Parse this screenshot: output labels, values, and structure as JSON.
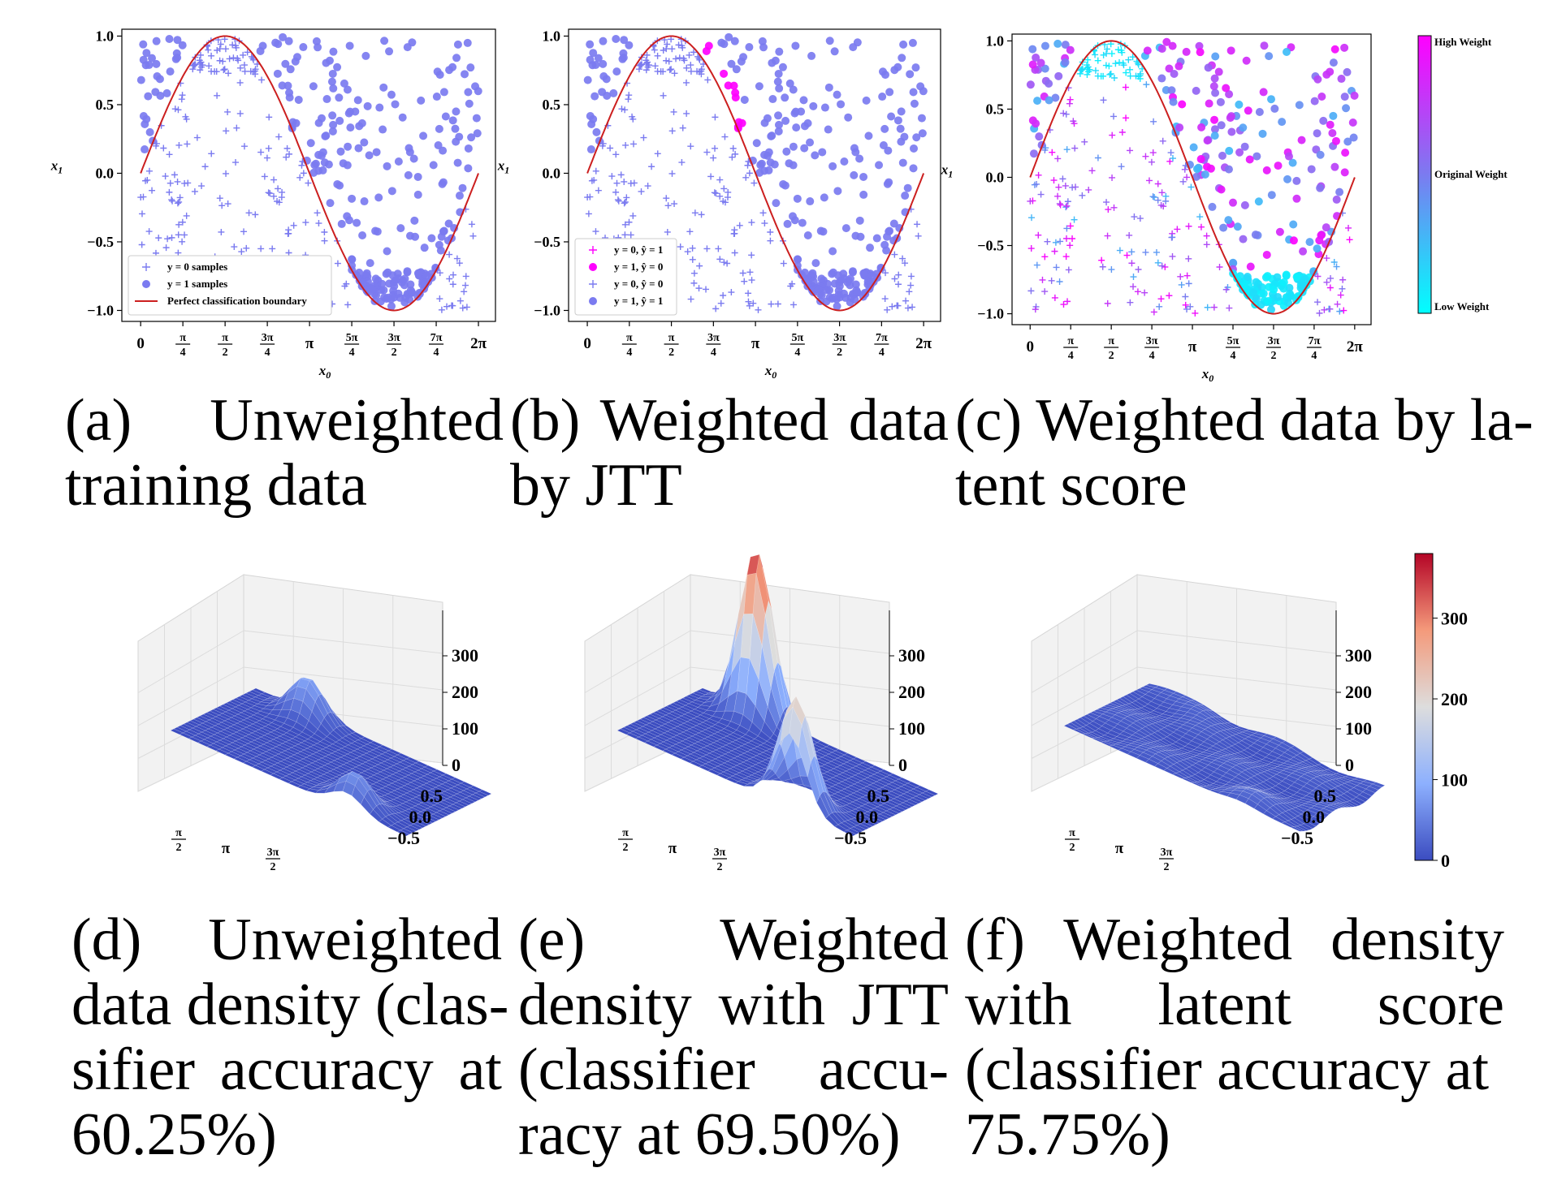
{
  "chart_data": [
    {
      "type": "scatter",
      "panel": "a",
      "xlabel": "x0",
      "ylabel": "x1",
      "x_ticks": [
        "0",
        "π/4",
        "π/2",
        "3π/4",
        "π",
        "5π/4",
        "3π/2",
        "7π/4",
        "2π"
      ],
      "y_ticks": [
        "1.0",
        "0.5",
        "0.0",
        "−0.5",
        "−1.0"
      ],
      "xlim": [
        -0.35,
        6.6
      ],
      "ylim": [
        -1.08,
        1.05
      ],
      "boundary": "sin(x0)",
      "legend": {
        "position": "lower-left",
        "entries": [
          "y = 0 samples",
          "y = 1 samples",
          "Perfect classification boundary"
        ]
      },
      "caption": [
        "(a)",
        "Unweighted",
        "training data"
      ]
    },
    {
      "type": "scatter",
      "panel": "b",
      "xlabel": "x0",
      "ylabel": "x1",
      "x_ticks": [
        "0",
        "π/4",
        "π/2",
        "3π/4",
        "π",
        "5π/4",
        "3π/2",
        "7π/4",
        "2π"
      ],
      "y_ticks": [
        "1.0",
        "0.5",
        "0.0",
        "−0.5",
        "−1.0"
      ],
      "xlim": [
        -0.35,
        6.6
      ],
      "ylim": [
        -1.08,
        1.05
      ],
      "boundary": "sin(x0)",
      "legend": {
        "position": "lower-left",
        "entries": [
          "y = 0, ŷ = 1",
          "y = 1, ŷ = 0",
          "y = 0, ŷ = 0",
          "y = 1, ŷ = 1"
        ]
      },
      "caption": [
        "(b)",
        "Weighted",
        "data",
        "by JTT"
      ]
    },
    {
      "type": "scatter",
      "panel": "c",
      "xlabel": "x0",
      "ylabel": "x1",
      "x_ticks": [
        "0",
        "π/4",
        "π/2",
        "3π/4",
        "π",
        "5π/4",
        "3π/2",
        "7π/4",
        "2π"
      ],
      "y_ticks": [
        "1.0",
        "0.5",
        "0.0",
        "−0.5",
        "−1.0"
      ],
      "xlim": [
        -0.35,
        6.6
      ],
      "ylim": [
        -1.08,
        1.05
      ],
      "boundary": "sin(x0)",
      "colorbar": {
        "labels": [
          "High Weight",
          "Original Weight",
          "Low Weight"
        ],
        "colors": [
          "#ff00ff",
          "#7b7bf0",
          "#00ffff"
        ]
      },
      "caption": [
        "(c) Weighted data by la-",
        "tent score"
      ]
    },
    {
      "type": "surface",
      "panel": "d",
      "z_ticks": [
        "300",
        "200",
        "100",
        "0"
      ],
      "y_ticks": [
        "0.5",
        "0.0",
        "−0.5"
      ],
      "x_ticks": [
        "π/2",
        "π",
        "3π/2"
      ],
      "zlim": [
        0,
        400
      ],
      "peaks": [
        {
          "x0": 1.6,
          "x1": 0.8,
          "height": 90
        },
        {
          "x0": 4.7,
          "x1": -0.8,
          "height": 70
        }
      ],
      "caption": [
        "(d)",
        "Unweighted",
        "data density (clas-",
        "sifier",
        "accuracy",
        "at",
        "60.25%)"
      ]
    },
    {
      "type": "surface",
      "panel": "e",
      "z_ticks": [
        "300",
        "200",
        "100",
        "0"
      ],
      "y_ticks": [
        "0.5",
        "0.0",
        "−0.5"
      ],
      "x_ticks": [
        "π/2",
        "π",
        "3π/2"
      ],
      "zlim": [
        0,
        400
      ],
      "peaks": [
        {
          "x0": 1.6,
          "x1": 0.85,
          "height": 360
        },
        {
          "x0": 4.6,
          "x1": -0.85,
          "height": 230
        }
      ],
      "caption": [
        "(e)",
        "Weighted",
        "density",
        "with",
        "JTT",
        "(classifier",
        "accu-",
        "racy at 69.50%)"
      ]
    },
    {
      "type": "surface",
      "panel": "f",
      "z_ticks": [
        "300",
        "200",
        "100",
        "0"
      ],
      "y_ticks": [
        "0.5",
        "0.0",
        "−0.5"
      ],
      "x_ticks": [
        "π/2",
        "π",
        "3π/2"
      ],
      "zlim": [
        0,
        400
      ],
      "peaks": [
        {
          "x0": 1.6,
          "x1": 0.8,
          "height": 15
        },
        {
          "x0": 4.7,
          "x1": -0.8,
          "height": 15
        }
      ],
      "colorbar": {
        "ticks": [
          "300",
          "200",
          "100",
          "0"
        ],
        "range": [
          0,
          380
        ],
        "colors": [
          "#3b4cc0",
          "#8db0fe",
          "#dddddd",
          "#f49a7b",
          "#b40426"
        ]
      },
      "caption": [
        "(f)",
        "Weighted",
        "density",
        "with",
        "latent",
        "score",
        "(classifier accuracy at",
        "75.75%)"
      ]
    }
  ],
  "colors": {
    "purple": "#7b7bf0",
    "magenta": "#ff00ff",
    "boundary": "#cc1f1f",
    "cyan": "#00e5ff"
  }
}
